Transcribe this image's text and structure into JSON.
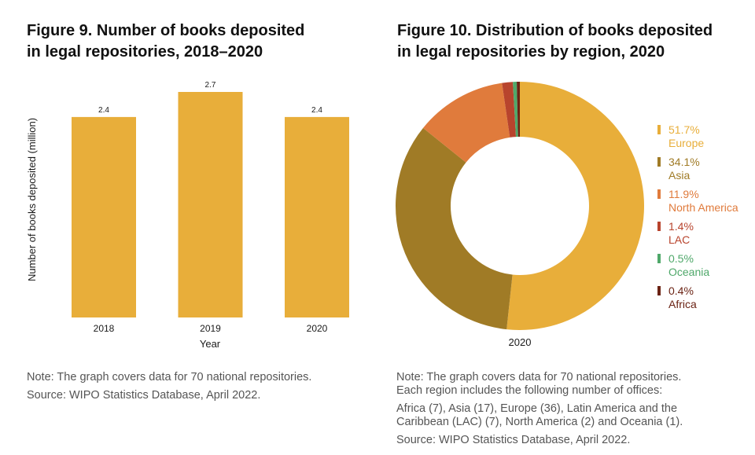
{
  "figure9": {
    "title_line1": "Figure 9. Number of books deposited",
    "title_line2": "in legal repositories, 2018–2020",
    "note": "Note: The graph covers data for 70 national repositories.",
    "source": "Source: WIPO Statistics Database, April 2022."
  },
  "figure10": {
    "title_line1": "Figure 10. Distribution of books deposited",
    "title_line2": "in legal repositories by region, 2020",
    "note_line1": "Note: The graph covers data for 70 national repositories.",
    "note_line2": "Each region includes the following number of offices:",
    "offices_line1": "Africa (7), Asia (17), Europe (36), Latin America and the",
    "offices_line2": "Caribbean (LAC) (7), North America (2) and Oceania (1).",
    "source": "Source: WIPO Statistics Database, April 2022."
  },
  "chart_data": [
    {
      "type": "bar",
      "title": "Figure 9. Number of books deposited in legal repositories, 2018–2020",
      "categories": [
        "2018",
        "2019",
        "2020"
      ],
      "values": [
        2.4,
        2.7,
        2.4
      ],
      "value_labels": [
        "2.4",
        "2.7",
        "2.4"
      ],
      "xlabel": "Year",
      "ylabel": "Number of books deposited (million)",
      "ylim": [
        0,
        2.7
      ],
      "grid": false,
      "color": "#E8AE3A"
    },
    {
      "type": "pie",
      "donut": true,
      "title": "Figure 10. Distribution of books deposited in legal repositories by region, 2020",
      "center_label": "2020",
      "legend_position": "right",
      "slices": [
        {
          "label": "Europe",
          "value": 51.7,
          "pct_label": "51.7%",
          "color": "#E8AE3A"
        },
        {
          "label": "Asia",
          "value": 34.1,
          "pct_label": "34.1%",
          "color": "#A07B26"
        },
        {
          "label": "North America",
          "value": 11.9,
          "pct_label": "11.9%",
          "color": "#E07B3C"
        },
        {
          "label": "LAC",
          "value": 1.4,
          "pct_label": "1.4%",
          "color": "#B8442D"
        },
        {
          "label": "Oceania",
          "value": 0.5,
          "pct_label": "0.5%",
          "color": "#4FA86A"
        },
        {
          "label": "Africa",
          "value": 0.4,
          "pct_label": "0.4%",
          "color": "#6B2314"
        }
      ]
    }
  ]
}
